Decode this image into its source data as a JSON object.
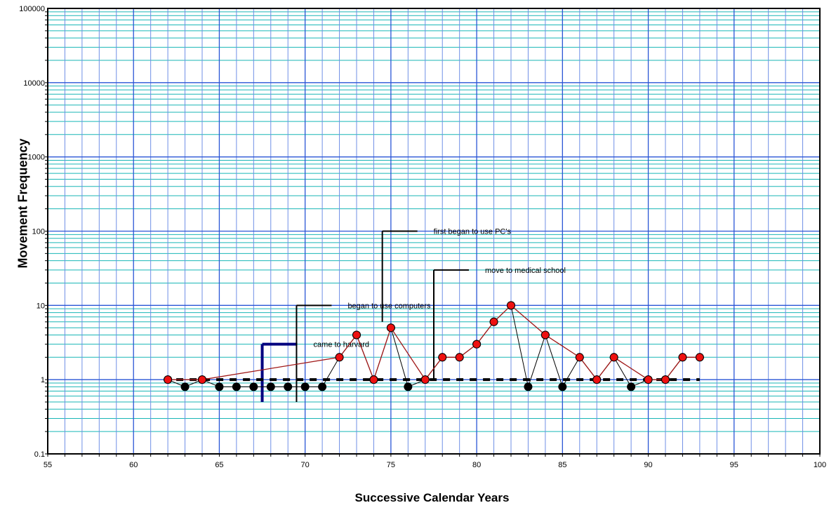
{
  "chart_data": {
    "type": "scatter",
    "xlabel": "Successive Calendar Years",
    "ylabel": "Movement Frequency",
    "xlim": [
      55,
      100
    ],
    "ylim": [
      0.1,
      100000
    ],
    "yscale": "log",
    "grid": true,
    "x_ticks": [
      "55",
      "60",
      "65",
      "70",
      "75",
      "80",
      "85",
      "90",
      "95",
      "100"
    ],
    "y_ticks": [
      "0.1",
      "1",
      "10",
      "100",
      "1000",
      "10000",
      "100000"
    ],
    "series": [
      {
        "style": "red-filled-circles-with-line",
        "color": "#e00000",
        "x": [
          62,
          64,
          72,
          73,
          74,
          75,
          77,
          78,
          79,
          80,
          81,
          82,
          84,
          86,
          87,
          88,
          90,
          91,
          92,
          93
        ],
        "y": [
          1,
          1,
          2,
          4,
          1,
          5,
          1,
          2,
          2,
          3,
          6,
          10,
          4,
          2,
          1,
          2,
          1,
          1,
          2,
          2
        ]
      },
      {
        "style": "black-filled-circles-with-line",
        "color": "#000000",
        "x": [
          62,
          63,
          64,
          65,
          66,
          67,
          68,
          69,
          70,
          71,
          72,
          73,
          74,
          75,
          76,
          77,
          78,
          79,
          80,
          81,
          82,
          83,
          84,
          85,
          86,
          87,
          88,
          89,
          90,
          91,
          92,
          93
        ],
        "y": [
          1,
          0.8,
          1,
          0.8,
          0.8,
          0.8,
          0.8,
          0.8,
          0.8,
          0.8,
          2,
          4,
          1,
          5,
          0.8,
          1,
          2,
          2,
          3,
          6,
          10,
          0.8,
          4,
          0.8,
          2,
          1,
          2,
          0.8,
          1,
          1,
          2,
          2
        ]
      },
      {
        "style": "dashed-reference-line",
        "color": "#000000",
        "x": [
          62,
          93
        ],
        "y": [
          1,
          1
        ]
      }
    ],
    "annotations": [
      {
        "text": "came to harvard",
        "x": 67.5,
        "y_top": 3,
        "y_bottom": 0.5,
        "color": "#00007f"
      },
      {
        "text": "began to use computers",
        "x": 69.5,
        "y_top": 10,
        "y_bottom": 0.5,
        "color": "#000000"
      },
      {
        "text": "first began to use PC's",
        "x": 74.5,
        "y_top": 100,
        "y_bottom": 6,
        "color": "#000000"
      },
      {
        "text": "move to medical school",
        "x": 77.5,
        "y_top": 30,
        "y_bottom": 1,
        "color": "#000000"
      }
    ]
  }
}
